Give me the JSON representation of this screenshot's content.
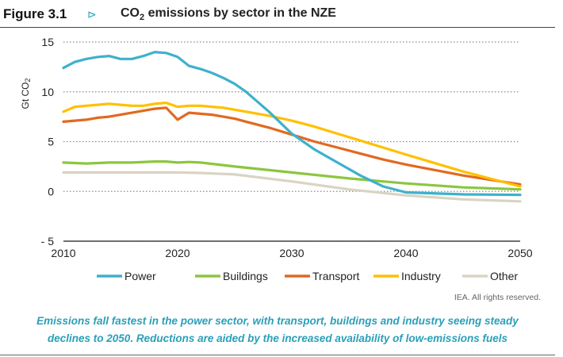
{
  "figure": {
    "label": "Figure 3.1",
    "arrow": "⊳",
    "title_pre": "CO",
    "title_sub": "2",
    "title_post": " emissions by sector in the NZE"
  },
  "credit": "IEA. All rights reserved.",
  "caption": {
    "line1": "Emissions fall fastest in the power sector, with transport, buildings and industry seeing steady",
    "line2": "declines to 2050. Reductions are aided by the increased availability of low-emissions fuels"
  },
  "chart_data": {
    "type": "line",
    "title": "CO2 emissions by sector in the NZE",
    "ylabel": "Gt CO",
    "ylabel_sub": "2",
    "xlabel": "",
    "xlim": [
      2010,
      2050
    ],
    "ylim": [
      -5,
      15
    ],
    "x_ticks": [
      2010,
      2020,
      2030,
      2040,
      2050
    ],
    "y_ticks": [
      -5,
      0,
      5,
      10,
      15
    ],
    "y_tick_labels": [
      "- 5",
      "0",
      "5",
      "10",
      "15"
    ],
    "grid": "horizontal-dotted",
    "legend_position": "bottom",
    "series": [
      {
        "name": "Power",
        "color": "#3eb1cc",
        "x": [
          2010,
          2011,
          2012,
          2013,
          2014,
          2015,
          2016,
          2017,
          2018,
          2019,
          2020,
          2021,
          2022,
          2023,
          2024,
          2025,
          2026,
          2027,
          2028,
          2029,
          2030,
          2032,
          2034,
          2036,
          2038,
          2040,
          2045,
          2050
        ],
        "y": [
          12.4,
          13.0,
          13.3,
          13.5,
          13.6,
          13.3,
          13.3,
          13.6,
          14.0,
          13.9,
          13.5,
          12.6,
          12.3,
          11.9,
          11.4,
          10.8,
          10.0,
          9.0,
          8.0,
          6.9,
          5.8,
          4.2,
          2.9,
          1.6,
          0.5,
          -0.1,
          -0.3,
          -0.35
        ]
      },
      {
        "name": "Buildings",
        "color": "#8cc63f",
        "x": [
          2010,
          2012,
          2014,
          2016,
          2018,
          2019,
          2020,
          2021,
          2022,
          2025,
          2030,
          2035,
          2040,
          2045,
          2050
        ],
        "y": [
          2.9,
          2.8,
          2.9,
          2.9,
          3.0,
          3.0,
          2.9,
          2.95,
          2.9,
          2.5,
          1.9,
          1.3,
          0.8,
          0.4,
          0.2
        ]
      },
      {
        "name": "Transport",
        "color": "#e2691f",
        "x": [
          2010,
          2011,
          2012,
          2013,
          2014,
          2015,
          2016,
          2017,
          2018,
          2019,
          2020,
          2021,
          2022,
          2023,
          2024,
          2025,
          2026,
          2028,
          2030,
          2032,
          2034,
          2036,
          2038,
          2040,
          2045,
          2050
        ],
        "y": [
          7.0,
          7.1,
          7.2,
          7.4,
          7.5,
          7.7,
          7.9,
          8.1,
          8.3,
          8.4,
          7.2,
          7.9,
          7.8,
          7.7,
          7.5,
          7.3,
          7.0,
          6.4,
          5.7,
          5.0,
          4.4,
          3.8,
          3.2,
          2.7,
          1.6,
          0.7
        ]
      },
      {
        "name": "Industry",
        "color": "#ffc000",
        "x": [
          2010,
          2011,
          2012,
          2013,
          2014,
          2015,
          2016,
          2017,
          2018,
          2019,
          2020,
          2021,
          2022,
          2023,
          2024,
          2025,
          2026,
          2028,
          2030,
          2032,
          2034,
          2036,
          2038,
          2040,
          2045,
          2050
        ],
        "y": [
          8.0,
          8.5,
          8.6,
          8.7,
          8.8,
          8.7,
          8.6,
          8.6,
          8.8,
          8.9,
          8.5,
          8.6,
          8.6,
          8.5,
          8.4,
          8.2,
          8.0,
          7.6,
          7.1,
          6.5,
          5.8,
          5.1,
          4.4,
          3.7,
          2.0,
          0.5
        ]
      },
      {
        "name": "Other",
        "color": "#d9d4c3",
        "x": [
          2010,
          2012,
          2014,
          2016,
          2018,
          2020,
          2022,
          2025,
          2030,
          2035,
          2040,
          2045,
          2050
        ],
        "y": [
          1.9,
          1.9,
          1.9,
          1.9,
          1.9,
          1.9,
          1.85,
          1.7,
          1.0,
          0.2,
          -0.4,
          -0.8,
          -1.0
        ]
      }
    ]
  }
}
